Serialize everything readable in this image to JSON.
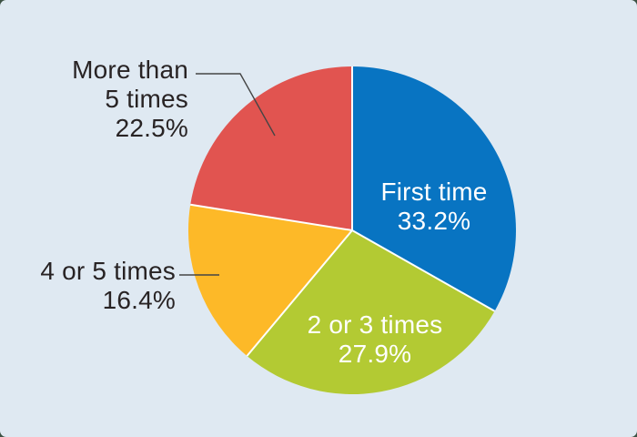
{
  "card": {
    "background_color": "#dfe9f2",
    "backdrop_color": "#3d5244"
  },
  "chart_data": {
    "type": "pie",
    "title": "",
    "start_angle_deg": -90,
    "direction": "clockwise",
    "legend_position": "none",
    "separator_color": "#ffffff",
    "leader_line_color": "#454545",
    "inside_label_color": "#ffffff",
    "outside_label_color": "#282324",
    "slices": [
      {
        "label": "First time",
        "value": 33.2,
        "pct_label": "33.2%",
        "color": "#0874c2",
        "label_placement": "inside"
      },
      {
        "label": "2 or 3 times",
        "value": 27.9,
        "pct_label": "27.9%",
        "color": "#b3ca33",
        "label_placement": "inside"
      },
      {
        "label": "4 or 5 times",
        "value": 16.4,
        "pct_label": "16.4%",
        "color": "#fdb928",
        "label_placement": "outside"
      },
      {
        "label": "More than 5 times",
        "value": 22.5,
        "pct_label": "22.5%",
        "color": "#e15450",
        "label_placement": "outside",
        "label_line1": "More than",
        "label_line2": "5 times"
      }
    ]
  }
}
